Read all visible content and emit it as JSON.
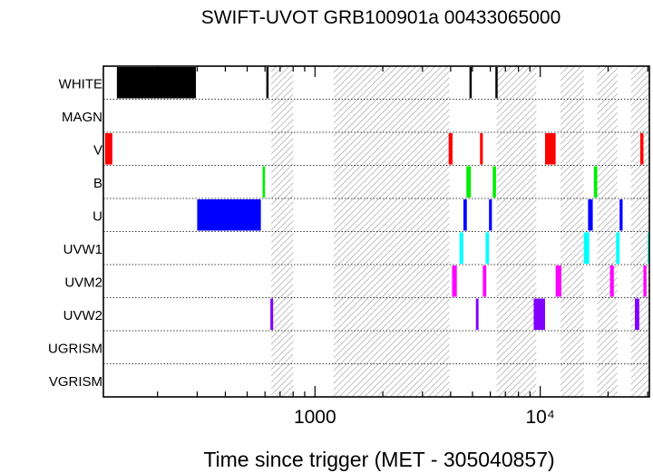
{
  "chart_data": {
    "type": "timeline",
    "title": "SWIFT-UVOT GRB100901a 00433065000",
    "xlabel": "Time since trigger (MET - 305040857)",
    "xscale": "log",
    "xlim": [
      115,
      30500
    ],
    "xticks": [
      {
        "value": 1000,
        "label": "1000"
      },
      {
        "value": 10000,
        "label": "10⁴"
      }
    ],
    "rows": [
      "WHITE",
      "MAGN",
      "V",
      "B",
      "U",
      "UVW1",
      "UVM2",
      "UVW2",
      "UGRISM",
      "VGRISM"
    ],
    "filter_colors": {
      "WHITE": "#000000",
      "V": "#ff0000",
      "B": "#00ee00",
      "U": "#0000ff",
      "UVW1": "#00ffff",
      "UVM2": "#ff00ff",
      "UVW2": "#8000ff"
    },
    "gaps": [
      [
        640,
        800
      ],
      [
        1210,
        3950
      ],
      [
        6400,
        9600
      ],
      [
        12300,
        15600
      ],
      [
        17900,
        22000
      ],
      [
        25300,
        30500
      ]
    ],
    "exposures": [
      {
        "filter": "WHITE",
        "start": 132,
        "end": 296
      },
      {
        "filter": "WHITE",
        "start": 608,
        "end": 622
      },
      {
        "filter": "WHITE",
        "start": 4850,
        "end": 4960
      },
      {
        "filter": "WHITE",
        "start": 6320,
        "end": 6400
      },
      {
        "filter": "V",
        "start": 117,
        "end": 126
      },
      {
        "filter": "V",
        "start": 3920,
        "end": 4080
      },
      {
        "filter": "V",
        "start": 5400,
        "end": 5560
      },
      {
        "filter": "V",
        "start": 10500,
        "end": 11700
      },
      {
        "filter": "V",
        "start": 27800,
        "end": 28700
      },
      {
        "filter": "B",
        "start": 585,
        "end": 600
      },
      {
        "filter": "B",
        "start": 4700,
        "end": 4920
      },
      {
        "filter": "B",
        "start": 6150,
        "end": 6360
      },
      {
        "filter": "B",
        "start": 17300,
        "end": 17900
      },
      {
        "filter": "U",
        "start": 300,
        "end": 575
      },
      {
        "filter": "U",
        "start": 4560,
        "end": 4720
      },
      {
        "filter": "U",
        "start": 5920,
        "end": 6100
      },
      {
        "filter": "U",
        "start": 16300,
        "end": 17100
      },
      {
        "filter": "U",
        "start": 22500,
        "end": 23200
      },
      {
        "filter": "UVW1",
        "start": 4380,
        "end": 4550
      },
      {
        "filter": "UVW1",
        "start": 5720,
        "end": 5920
      },
      {
        "filter": "UVW1",
        "start": 15600,
        "end": 16500
      },
      {
        "filter": "UVW1",
        "start": 21700,
        "end": 22500
      },
      {
        "filter": "UVW1",
        "start": 30000,
        "end": 30500
      },
      {
        "filter": "UVM2",
        "start": 4060,
        "end": 4260
      },
      {
        "filter": "UVM2",
        "start": 5560,
        "end": 5760
      },
      {
        "filter": "UVM2",
        "start": 11700,
        "end": 12400
      },
      {
        "filter": "UVM2",
        "start": 20400,
        "end": 21200
      },
      {
        "filter": "UVM2",
        "start": 28700,
        "end": 29600
      },
      {
        "filter": "UVW2",
        "start": 634,
        "end": 652
      },
      {
        "filter": "UVW2",
        "start": 5180,
        "end": 5320
      },
      {
        "filter": "UVW2",
        "start": 9350,
        "end": 10500
      },
      {
        "filter": "UVW2",
        "start": 26300,
        "end": 27500
      }
    ]
  }
}
